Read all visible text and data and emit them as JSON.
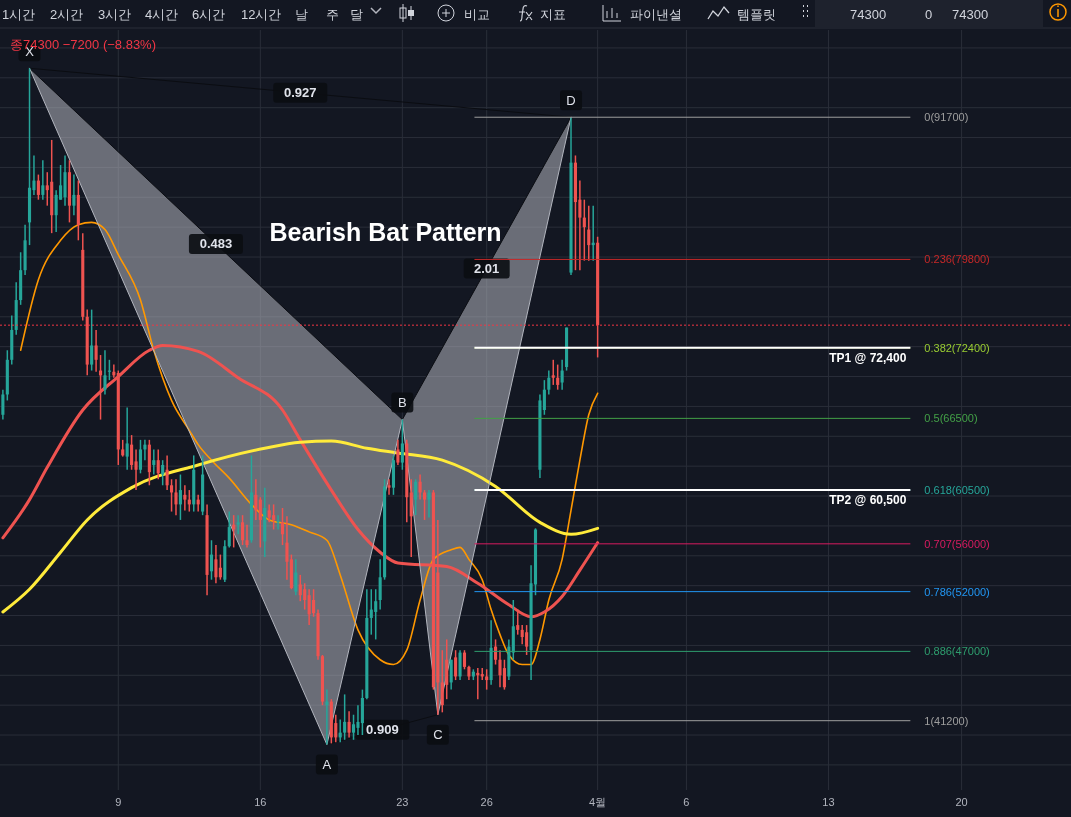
{
  "chart_data": {
    "type": "candlestick",
    "title": "Bearish Bat Pattern",
    "subtitle": "종74300 −7200 (−8.83%)",
    "annotations": [
      "1시간",
      "2시간",
      "3시간",
      "4시간",
      "6시간",
      "12시간",
      "날",
      "주",
      "달",
      "비교",
      "지표",
      "파이낸셜",
      "템플릿",
      "74300",
      "0",
      "74300",
      "0.927",
      "0.483",
      "0.909",
      "2.01",
      {
        "text": "X",
        "y": 95800
      },
      {
        "text": "A",
        "y": 39200
      },
      {
        "text": "B",
        "y": 66400
      },
      {
        "text": "C",
        "y": 41700
      },
      {
        "text": "D",
        "y": 91700
      }
    ],
    "categories": [
      null,
      null,
      null,
      null,
      null,
      null,
      null,
      null,
      null,
      null,
      null,
      null,
      null,
      null,
      null,
      null,
      null,
      null,
      null,
      null,
      null,
      null,
      null,
      null,
      null,
      null,
      "9",
      null,
      null,
      null,
      null,
      null,
      null,
      null,
      null,
      null,
      null,
      null,
      null,
      null,
      null,
      null,
      null,
      null,
      null,
      null,
      null,
      null,
      null,
      null,
      null,
      null,
      null,
      null,
      null,
      null,
      null,
      null,
      "16",
      null,
      null,
      null,
      null,
      null,
      null,
      null,
      null,
      null,
      null,
      null,
      null,
      null,
      null,
      null,
      null,
      null,
      null,
      null,
      null,
      null,
      null,
      null,
      null,
      null,
      null,
      null,
      null,
      null,
      null,
      null,
      "23",
      null,
      null,
      null,
      null,
      null,
      null,
      null,
      null,
      null,
      null,
      null,
      null,
      null,
      null,
      null,
      null,
      null,
      null,
      "26",
      null,
      null,
      null,
      null,
      null,
      null,
      null,
      null,
      null,
      null,
      null,
      null,
      null,
      null,
      null,
      null,
      null,
      null,
      null,
      null,
      null,
      null,
      null,
      null,
      "4월",
      null,
      null,
      null,
      null,
      null,
      null,
      null,
      null,
      null,
      null,
      null,
      null,
      null,
      null,
      null,
      null,
      null,
      null,
      null,
      "6",
      null,
      null,
      null,
      null,
      null,
      null,
      null,
      null,
      null,
      null,
      null,
      null,
      null,
      null,
      null,
      null,
      null,
      null,
      null,
      null,
      null,
      null,
      null,
      null,
      null,
      null,
      null,
      null,
      null,
      null,
      null,
      "13",
      null,
      null,
      null,
      null,
      null,
      null,
      null,
      null,
      null,
      null,
      null,
      null,
      null,
      null,
      null,
      null,
      null,
      null,
      null,
      null,
      null,
      null,
      null,
      null,
      null,
      null,
      null,
      null,
      null,
      "20",
      null,
      null,
      null,
      null,
      null,
      null,
      null,
      null,
      null,
      null,
      null,
      null,
      null,
      null,
      null,
      null,
      null,
      null,
      null,
      null,
      null,
      null,
      null,
      null
    ],
    "ohlc": [
      [
        66800,
        68900,
        66400,
        68500
      ],
      [
        68500,
        72200,
        68000,
        71400
      ],
      [
        71400,
        75100,
        71000,
        73900
      ],
      [
        73900,
        77900,
        73500,
        76400
      ],
      [
        76400,
        80400,
        76000,
        78900
      ],
      [
        78900,
        82700,
        78500,
        81400
      ],
      [
        82900,
        95800,
        81000,
        85800
      ],
      [
        85600,
        88500,
        85200,
        86400
      ],
      [
        86400,
        86900,
        84800,
        85200
      ],
      [
        85200,
        88100,
        84800,
        86000
      ],
      [
        86000,
        87100,
        84300,
        85600
      ],
      [
        86300,
        89800,
        82000,
        83500
      ],
      [
        83500,
        85600,
        82100,
        85200
      ],
      [
        84800,
        87700,
        84800,
        86000
      ],
      [
        85000,
        88500,
        84300,
        87100
      ],
      [
        87100,
        88100,
        82900,
        84300
      ],
      [
        84300,
        86900,
        83500,
        85200
      ],
      [
        85200,
        86400,
        81400,
        82700
      ],
      [
        80600,
        82000,
        74700,
        75000
      ],
      [
        75000,
        75600,
        70100,
        71000
      ],
      [
        71000,
        75600,
        70500,
        72600
      ],
      [
        72600,
        73900,
        70400,
        71400
      ],
      [
        70500,
        71800,
        66400,
        70100
      ],
      [
        68900,
        72200,
        68500,
        70100
      ],
      [
        70400,
        71400,
        69700,
        70500
      ],
      [
        70400,
        71000,
        69900,
        70100
      ],
      [
        70300,
        70500,
        62600,
        63900
      ],
      [
        63900,
        64700,
        63300,
        63400
      ],
      [
        63300,
        67400,
        62200,
        64400
      ],
      [
        64300,
        65100,
        62200,
        62600
      ],
      [
        62900,
        63900,
        60500,
        62200
      ],
      [
        62200,
        64700,
        61900,
        63900
      ],
      [
        63900,
        64700,
        63000,
        64300
      ],
      [
        64300,
        64700,
        60900,
        62000
      ],
      [
        62600,
        63900,
        61800,
        63000
      ],
      [
        63000,
        63900,
        61400,
        61900
      ],
      [
        61800,
        63000,
        60900,
        62600
      ],
      [
        62200,
        63400,
        60500,
        60900
      ],
      [
        60900,
        61400,
        58700,
        60300
      ],
      [
        60300,
        61400,
        58400,
        59300
      ],
      [
        59300,
        61800,
        58000,
        60500
      ],
      [
        60100,
        60900,
        58800,
        59700
      ],
      [
        59700,
        60500,
        58700,
        59300
      ],
      [
        59300,
        63400,
        58700,
        62200
      ],
      [
        59700,
        60100,
        58700,
        59300
      ],
      [
        58700,
        63400,
        58400,
        61800
      ],
      [
        58400,
        59300,
        51700,
        53400
      ],
      [
        53700,
        56300,
        53000,
        55100
      ],
      [
        54700,
        55900,
        52700,
        53200
      ],
      [
        54000,
        55100,
        53000,
        53200
      ],
      [
        53000,
        56300,
        52800,
        55800
      ],
      [
        55800,
        58700,
        55700,
        57400
      ],
      [
        57600,
        58400,
        55700,
        57200
      ],
      [
        57600,
        58400,
        56800,
        57800
      ],
      [
        57800,
        58400,
        55900,
        56300
      ],
      [
        56300,
        57600,
        55700,
        55900
      ],
      [
        56300,
        63400,
        56100,
        60300
      ],
      [
        60100,
        61400,
        58000,
        58800
      ],
      [
        59700,
        59900,
        55700,
        58000
      ],
      [
        56200,
        60700,
        54900,
        59000
      ],
      [
        58800,
        59300,
        57800,
        58200
      ],
      [
        58400,
        59300,
        57200,
        58000
      ],
      [
        57800,
        58400,
        57200,
        57900
      ],
      [
        57800,
        59000,
        55900,
        56800
      ],
      [
        56100,
        58300,
        53000,
        54500
      ],
      [
        54700,
        55100,
        52200,
        52300
      ],
      [
        52000,
        54700,
        51700,
        53600
      ],
      [
        52600,
        53400,
        51200,
        51700
      ],
      [
        52200,
        52700,
        50500,
        51300
      ],
      [
        51700,
        52200,
        49200,
        50100
      ],
      [
        51300,
        52200,
        49900,
        50200
      ],
      [
        50200,
        50500,
        46300,
        46600
      ],
      [
        46600,
        46700,
        42500,
        42800
      ],
      [
        42500,
        43800,
        39200,
        42800
      ],
      [
        42800,
        43000,
        39300,
        39800
      ],
      [
        41000,
        41700,
        39400,
        39800
      ],
      [
        39800,
        41300,
        39400,
        40200
      ],
      [
        40200,
        43400,
        39600,
        41100
      ],
      [
        41100,
        42000,
        39800,
        40200
      ],
      [
        40200,
        41700,
        39600,
        40900
      ],
      [
        40600,
        42500,
        40000,
        41100
      ],
      [
        41000,
        43800,
        40000,
        43100
      ],
      [
        43100,
        52200,
        43000,
        49800
      ],
      [
        49800,
        52200,
        48400,
        50500
      ],
      [
        50300,
        52200,
        48000,
        51200
      ],
      [
        51300,
        54700,
        50500,
        53200
      ],
      [
        53200,
        61400,
        53000,
        60800
      ],
      [
        60900,
        61400,
        60100,
        60700
      ],
      [
        60700,
        63400,
        60100,
        63000
      ],
      [
        63900,
        64700,
        62600,
        62800
      ],
      [
        62800,
        66400,
        62200,
        64400
      ],
      [
        64400,
        64700,
        57800,
        59900
      ],
      [
        60300,
        61400,
        54900,
        58300
      ],
      [
        59700,
        61400,
        58400,
        61200
      ],
      [
        61200,
        61800,
        59700,
        60300
      ],
      [
        60300,
        60500,
        58000,
        59700
      ],
      [
        59700,
        60500,
        58200,
        60300
      ],
      [
        60300,
        60500,
        43800,
        44000
      ],
      [
        53600,
        58000,
        41700,
        44400
      ],
      [
        44400,
        47100,
        41900,
        42500
      ],
      [
        46300,
        48000,
        43000,
        44200
      ],
      [
        44400,
        46300,
        43800,
        46300
      ],
      [
        46500,
        47100,
        44600,
        44900
      ],
      [
        44900,
        47100,
        44600,
        46900
      ],
      [
        46900,
        47100,
        45500,
        45700
      ],
      [
        45700,
        45800,
        44600,
        44900
      ],
      [
        44900,
        45500,
        44600,
        45300
      ],
      [
        45200,
        45600,
        43000,
        45000
      ],
      [
        45100,
        45600,
        44600,
        44900
      ],
      [
        44900,
        45500,
        43800,
        44600
      ],
      [
        44600,
        49600,
        44200,
        47300
      ],
      [
        47400,
        48000,
        45900,
        46300
      ],
      [
        46300,
        47100,
        44000,
        45000
      ],
      [
        45600,
        46300,
        43800,
        44000
      ],
      [
        44900,
        48000,
        44600,
        47400
      ],
      [
        46900,
        51300,
        46300,
        49100
      ],
      [
        49200,
        50500,
        48400,
        48800
      ],
      [
        48800,
        49200,
        47600,
        48200
      ],
      [
        48600,
        49200,
        46700,
        47400
      ],
      [
        47100,
        54200,
        44600,
        52700
      ],
      [
        52600,
        57300,
        51700,
        57200
      ],
      [
        62200,
        68500,
        61500,
        68000
      ],
      [
        67200,
        69700,
        66800,
        68900
      ],
      [
        68900,
        70500,
        68500,
        69900
      ],
      [
        70100,
        71400,
        69300,
        69900
      ],
      [
        69900,
        71000,
        68900,
        69300
      ],
      [
        69500,
        71400,
        68900,
        70500
      ],
      [
        70800,
        74100,
        70500,
        74100
      ],
      [
        78700,
        91700,
        78500,
        87900
      ],
      [
        87900,
        88500,
        78900,
        84600
      ],
      [
        84800,
        86400,
        78900,
        83300
      ],
      [
        83300,
        84800,
        79700,
        82500
      ],
      [
        82300,
        84300,
        79700,
        81000
      ],
      [
        81000,
        84300,
        79700,
        81200
      ],
      [
        81200,
        81700,
        71600,
        74300
      ],
      null,
      null,
      null,
      null,
      null,
      null,
      null,
      null,
      null,
      null,
      null,
      null,
      null,
      null,
      null,
      null,
      null,
      null,
      null,
      null,
      null,
      null,
      null,
      null,
      null,
      null,
      null,
      null,
      null,
      null,
      null,
      null,
      null,
      null,
      null,
      null,
      null,
      null,
      null,
      null,
      null,
      null,
      null,
      null,
      null,
      null,
      null,
      null,
      null,
      null,
      null,
      null,
      null,
      null,
      null,
      null,
      null,
      null,
      null,
      null,
      null,
      null,
      null,
      null,
      null,
      null,
      null,
      null,
      null,
      null,
      null,
      null,
      null,
      null,
      null,
      null,
      null,
      null,
      null,
      null,
      null,
      null,
      null,
      null,
      null,
      null,
      null,
      null,
      null,
      null,
      null,
      null,
      null,
      null,
      null,
      null,
      null,
      null,
      null,
      null,
      null,
      null,
      null,
      null,
      null,
      null
    ],
    "series": [
      {
        "type": "line",
        "color": "#ff9800",
        "values": [
          null,
          null,
          null,
          null,
          72200,
          null,
          null,
          null,
          78100,
          null,
          null,
          null,
          null,
          81400,
          null,
          null,
          null,
          82700,
          null,
          null,
          82900,
          null,
          null,
          82300,
          null,
          null,
          80200,
          null,
          null,
          null,
          null,
          76400,
          null,
          null,
          72200,
          null,
          null,
          null,
          68000,
          null,
          null,
          null,
          65500,
          null,
          64300,
          null,
          null,
          63000,
          null,
          null,
          null,
          61500,
          null,
          null,
          null,
          null,
          59300,
          null,
          null,
          null,
          58000,
          null,
          null,
          null,
          null,
          57600,
          null,
          null,
          null,
          57000,
          null,
          null,
          null,
          56300,
          null,
          null,
          53400,
          null,
          null,
          null,
          48800,
          null,
          null,
          null,
          null,
          46300,
          null,
          null,
          45900,
          null,
          null,
          47100,
          null,
          null,
          51300,
          null,
          null,
          54700,
          null,
          null,
          null,
          55500,
          null,
          55700,
          null,
          54700,
          null,
          null,
          53000,
          null,
          50500,
          null,
          48400,
          null,
          46700,
          null,
          null,
          45900,
          null,
          45900,
          null,
          48000,
          null,
          51300,
          null,
          null,
          54700,
          null,
          58800,
          null,
          63000,
          null,
          66800,
          null,
          68600,
          null,
          null,
          null,
          null,
          null,
          null,
          null,
          null,
          null,
          null,
          null,
          null,
          null,
          null,
          null,
          null,
          null,
          null,
          null,
          null,
          null,
          null,
          null,
          null,
          null,
          null,
          null,
          null,
          null,
          null,
          null,
          null,
          null,
          null,
          null,
          null,
          null,
          null,
          null,
          null,
          null,
          null,
          null,
          null,
          null,
          null,
          null,
          null,
          null,
          null,
          null,
          null,
          null,
          null,
          null,
          null,
          null,
          null,
          null,
          null,
          null,
          null,
          null,
          null,
          null,
          null,
          null,
          null,
          null,
          null,
          null,
          null,
          null,
          null,
          null,
          null,
          null,
          null,
          null,
          null,
          null,
          null,
          null,
          null,
          null,
          null,
          null,
          null,
          null,
          null,
          null,
          null,
          null,
          null,
          null,
          null,
          null,
          null,
          null,
          null,
          null,
          null,
          null,
          null,
          null,
          null
        ]
      },
      {
        "type": "line",
        "color": "#ef5350",
        "values": [
          56500,
          null,
          null,
          null,
          null,
          null,
          59700,
          null,
          null,
          null,
          62400,
          null,
          null,
          null,
          null,
          null,
          null,
          null,
          67200,
          null,
          null,
          null,
          null,
          null,
          null,
          null,
          70000,
          null,
          null,
          null,
          null,
          null,
          null,
          72200,
          null,
          null,
          72600,
          null,
          null,
          null,
          null,
          null,
          null,
          null,
          72100,
          null,
          null,
          null,
          null,
          null,
          null,
          null,
          null,
          69900,
          null,
          null,
          null,
          null,
          null,
          null,
          null,
          null,
          null,
          67200,
          null,
          null,
          null,
          64700,
          null,
          null,
          null,
          null,
          null,
          null,
          60500,
          null,
          null,
          null,
          null,
          null,
          57200,
          null,
          null,
          null,
          null,
          55300,
          null,
          null,
          null,
          54400,
          null,
          null,
          null,
          null,
          null,
          null,
          null,
          null,
          null,
          null,
          54100,
          null,
          null,
          null,
          null,
          null,
          null,
          52700,
          null,
          null,
          null,
          null,
          null,
          null,
          50900,
          null,
          null,
          null,
          null,
          49900,
          null,
          null,
          50300,
          null,
          null,
          null,
          51600,
          null,
          null,
          null,
          53800,
          null,
          null,
          null,
          56100,
          null,
          null,
          null,
          null,
          null,
          null,
          null,
          null,
          null,
          null,
          null,
          null,
          null,
          null,
          null,
          null,
          null,
          null,
          null,
          null,
          null,
          null,
          null,
          null,
          null,
          null,
          null,
          null,
          null,
          null,
          null,
          null,
          null,
          null,
          null,
          null,
          null,
          null,
          null,
          null,
          null,
          null,
          null,
          null,
          null,
          null,
          null,
          null,
          null,
          null,
          null,
          null,
          null,
          null,
          null,
          null,
          null,
          null,
          null,
          null,
          null,
          null,
          null,
          null,
          null,
          null,
          null,
          null,
          null,
          null,
          null,
          null,
          null,
          null,
          null,
          null,
          null,
          null,
          null,
          null,
          null,
          null,
          null,
          null,
          null,
          null,
          null,
          null,
          null,
          null,
          null,
          null,
          null,
          null,
          null,
          null,
          null,
          null,
          null,
          null,
          null,
          null,
          null,
          null,
          null,
          null
        ]
      },
      {
        "type": "line",
        "color": "#ffeb3b",
        "values": [
          50300,
          null,
          null,
          null,
          null,
          null,
          52200,
          null,
          null,
          null,
          null,
          null,
          null,
          55300,
          null,
          null,
          null,
          null,
          null,
          58000,
          null,
          null,
          null,
          null,
          null,
          null,
          null,
          null,
          null,
          60700,
          null,
          null,
          null,
          null,
          null,
          null,
          null,
          null,
          null,
          null,
          null,
          null,
          null,
          null,
          62600,
          null,
          null,
          null,
          null,
          null,
          null,
          null,
          null,
          null,
          null,
          null,
          null,
          null,
          null,
          64000,
          null,
          null,
          null,
          null,
          null,
          null,
          null,
          64500,
          null,
          null,
          null,
          null,
          null,
          null,
          64600,
          null,
          null,
          null,
          null,
          null,
          null,
          null,
          64000,
          null,
          null,
          null,
          null,
          null,
          null,
          63600,
          null,
          null,
          null,
          null,
          null,
          null,
          null,
          null,
          null,
          63000,
          null,
          null,
          null,
          null,
          null,
          null,
          null,
          null,
          null,
          null,
          null,
          60800,
          null,
          null,
          null,
          null,
          null,
          null,
          null,
          null,
          null,
          57800,
          null,
          null,
          null,
          null,
          null,
          null,
          56800,
          null,
          null,
          null,
          null,
          null,
          57300,
          null,
          null,
          null,
          null,
          null,
          null,
          null,
          null,
          null,
          null,
          null,
          null,
          null,
          null,
          null,
          null,
          null,
          null,
          null,
          null,
          null,
          null,
          null,
          null,
          null,
          null,
          null,
          null,
          null,
          null,
          null,
          null,
          null,
          null,
          null,
          null,
          null,
          null,
          null,
          null,
          null,
          null,
          null,
          null,
          null,
          null,
          null,
          null,
          null,
          null,
          null,
          null,
          null,
          null,
          null,
          null,
          null,
          null,
          null,
          null,
          null,
          null,
          null,
          null,
          null,
          null,
          null,
          null,
          null,
          null,
          null,
          null,
          null,
          null,
          null,
          null,
          null,
          null,
          null,
          null,
          null,
          null,
          null,
          null,
          null,
          null,
          null,
          null,
          null,
          null,
          null,
          null,
          null,
          null,
          null,
          null,
          null,
          null,
          null,
          null,
          null,
          null,
          null,
          null,
          null,
          null
        ]
      },
      {
        "type": "line",
        "color": "#b2b5be",
        "values": [
          null,
          null,
          null,
          null,
          null,
          null,
          95800,
          null,
          null,
          null,
          null,
          null,
          null,
          null,
          null,
          null,
          null,
          null,
          null,
          null,
          null,
          null,
          null,
          null,
          null,
          null,
          null,
          null,
          null,
          null,
          null,
          null,
          null,
          null,
          null,
          null,
          null,
          null,
          null,
          null,
          null,
          null,
          null,
          null,
          null,
          null,
          null,
          null,
          null,
          null,
          null,
          null,
          null,
          null,
          null,
          null,
          null,
          null,
          null,
          null,
          null,
          null,
          null,
          null,
          null,
          null,
          null,
          null,
          null,
          null,
          null,
          null,
          null,
          39200,
          null,
          null,
          null,
          null,
          null,
          null,
          null,
          null,
          null,
          null,
          null,
          null,
          null,
          null,
          null,
          null,
          66400,
          null,
          null,
          null,
          null,
          null,
          null,
          null,
          41700,
          null,
          null,
          null,
          null,
          null,
          null,
          null,
          null,
          null,
          null,
          null,
          null,
          null,
          null,
          null,
          null,
          null,
          null,
          null,
          null,
          null,
          null,
          null,
          null,
          null,
          null,
          null,
          null,
          null,
          91700,
          null,
          null,
          null,
          null,
          null,
          null,
          null,
          null,
          null,
          null,
          null,
          null,
          null,
          null,
          null,
          null,
          null,
          null,
          null,
          null,
          null,
          null,
          null,
          null,
          null,
          null,
          null,
          null,
          null,
          null,
          null,
          null,
          null,
          null,
          null,
          null,
          null,
          null,
          null,
          null,
          null,
          null,
          null,
          null,
          null,
          null,
          null,
          null,
          null,
          null,
          null,
          null,
          null,
          null,
          null,
          null,
          null,
          null,
          null,
          null,
          null,
          null,
          null,
          null,
          null,
          null,
          null,
          null,
          null,
          null,
          null,
          null,
          null,
          null,
          null,
          null,
          null,
          null,
          null,
          null,
          null,
          null,
          null,
          null,
          null,
          null,
          null,
          null,
          null,
          null,
          null,
          null,
          null,
          null,
          null,
          null,
          null,
          null,
          null,
          null,
          null,
          null,
          null,
          null,
          null,
          null,
          null,
          null,
          null,
          null,
          null,
          null
        ]
      }
    ],
    "ref_lines": [
      {
        "axis": "y",
        "value": 74300,
        "label": null,
        "color": "#f23645",
        "line_style": "dotted"
      },
      {
        "axis": "y",
        "value": 91700,
        "label": "0(91700)",
        "color": "#9e9e9e"
      },
      {
        "axis": "y",
        "value": 79800,
        "label": "0.236(79800)",
        "color": "#c62828"
      },
      {
        "axis": "y",
        "value": 72400,
        "label": "0.382(72400)",
        "color": "#9acd32"
      },
      {
        "axis": "y",
        "value": 66500,
        "label": "0.5(66500)",
        "color": "#43a047"
      },
      {
        "axis": "y",
        "value": 60500,
        "label": "0.618(60500)",
        "color": "#26a69a"
      },
      {
        "axis": "y",
        "value": 56000,
        "label": "0.707(56000)",
        "color": "#d81b60"
      },
      {
        "axis": "y",
        "value": 52000,
        "label": "0.786(52000)",
        "color": "#2196f3"
      },
      {
        "axis": "y",
        "value": 47000,
        "label": "0.886(47000)",
        "color": "#2e9e6e"
      },
      {
        "axis": "y",
        "value": 41200,
        "label": "1(41200)",
        "color": "#9e9e9e"
      },
      {
        "axis": "y",
        "value": 72400,
        "label": "TP1 @ 72,400",
        "color": "#ffffff"
      },
      {
        "axis": "y",
        "value": 60500,
        "label": "TP2 @ 60,500",
        "color": "#ffffff"
      }
    ],
    "ylim": [
      35400,
      99000
    ],
    "yticks": [
      {
        "value": 37500,
        "label": null
      },
      {
        "value": 40000,
        "label": null
      },
      {
        "value": 42500,
        "label": null
      },
      {
        "value": 45000,
        "label": null
      },
      {
        "value": 47500,
        "label": null
      },
      {
        "value": 50000,
        "label": null
      },
      {
        "value": 52500,
        "label": null
      },
      {
        "value": 55000,
        "label": null
      },
      {
        "value": 57500,
        "label": null
      },
      {
        "value": 60000,
        "label": null
      },
      {
        "value": 62500,
        "label": null
      },
      {
        "value": 65000,
        "label": null
      },
      {
        "value": 67500,
        "label": null
      },
      {
        "value": 70000,
        "label": null
      },
      {
        "value": 72500,
        "label": null
      },
      {
        "value": 75000,
        "label": null
      },
      {
        "value": 77500,
        "label": null
      },
      {
        "value": 80000,
        "label": null
      },
      {
        "value": 82500,
        "label": null
      },
      {
        "value": 85000,
        "label": null
      },
      {
        "value": 87500,
        "label": null
      },
      {
        "value": 90000,
        "label": null
      },
      {
        "value": 92500,
        "label": null
      },
      {
        "value": 95000,
        "label": null
      },
      {
        "value": 97500,
        "label": null
      }
    ],
    "tick_labels": "x",
    "grid": true
  }
}
